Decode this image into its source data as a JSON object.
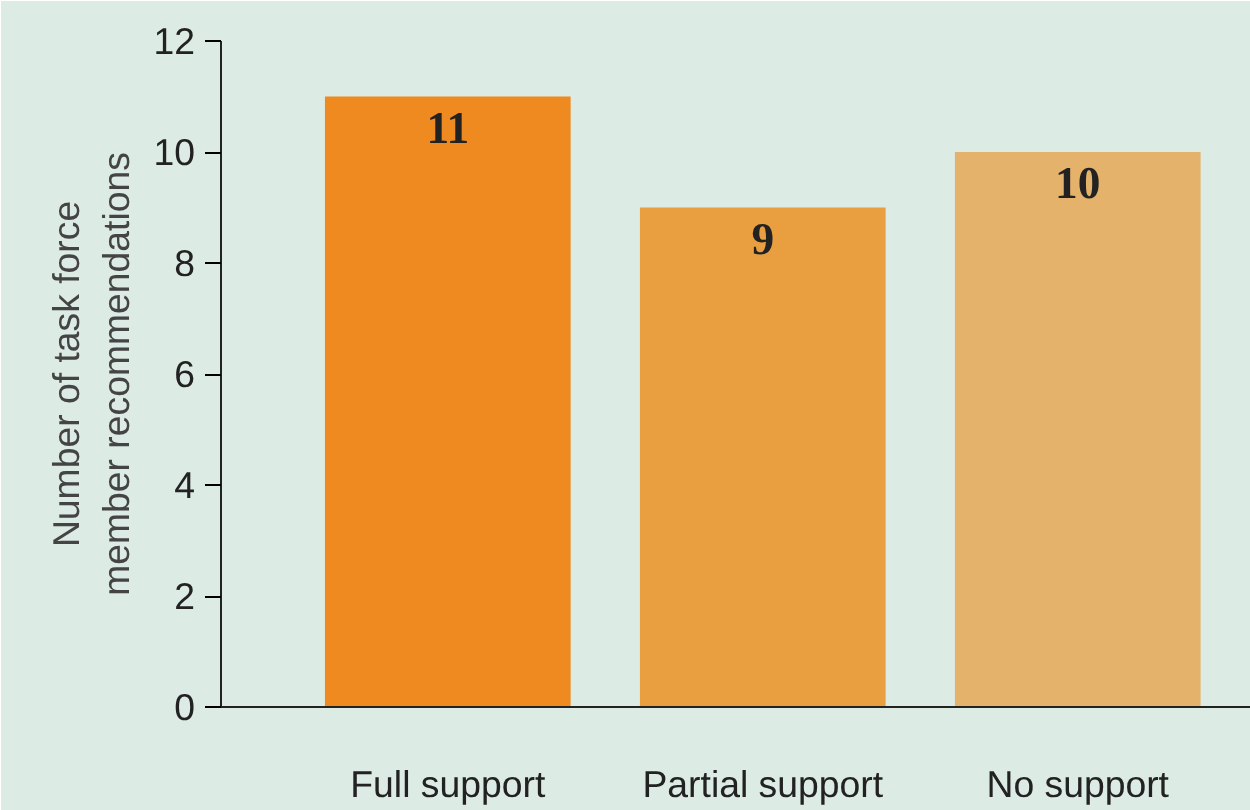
{
  "chart_data": {
    "type": "bar",
    "ylabel": "Number of task force\nmember recommendations",
    "categories": [
      "Full support",
      "Partial support",
      "No support"
    ],
    "values": [
      11,
      9,
      10
    ],
    "colors": [
      "#ee8a1f",
      "#e99f40",
      "#e5b26c"
    ],
    "ylim": [
      0,
      12
    ],
    "yticks": [
      0,
      2,
      4,
      6,
      8,
      10,
      12
    ],
    "grid": false,
    "data_labels": true
  }
}
